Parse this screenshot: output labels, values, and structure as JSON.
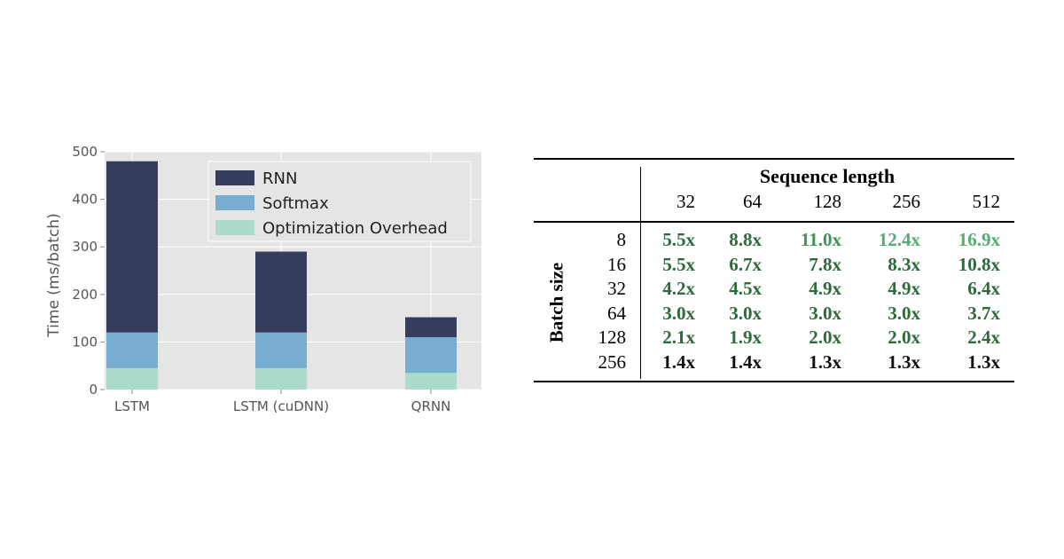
{
  "chart_data": {
    "type": "bar",
    "stacked": true,
    "title": "",
    "xlabel": "",
    "ylabel": "Time (ms/batch)",
    "ylim": [
      0,
      500
    ],
    "yticks": [
      0,
      100,
      200,
      300,
      400,
      500
    ],
    "grid": true,
    "legend_position": "top-right",
    "categories": [
      "LSTM",
      "LSTM (cuDNN)",
      "QRNN"
    ],
    "series": [
      {
        "name": "Optimization Overhead",
        "color": "#acdbcb",
        "values": [
          45,
          45,
          35
        ]
      },
      {
        "name": "Softmax",
        "color": "#77adcf",
        "values": [
          75,
          75,
          75
        ]
      },
      {
        "name": "RNN",
        "color": "#363d5f",
        "values": [
          360,
          170,
          42
        ]
      }
    ],
    "legend_order": [
      "RNN",
      "Softmax",
      "Optimization Overhead"
    ],
    "background_color": "#e5e5e5"
  },
  "table": {
    "header": "Sequence length",
    "row_header": "Batch size",
    "columns": [
      "32",
      "64",
      "128",
      "256",
      "512"
    ],
    "rows": [
      {
        "batch": "8",
        "values": [
          "5.5x",
          "8.8x",
          "11.0x",
          "12.4x",
          "16.9x"
        ]
      },
      {
        "batch": "16",
        "values": [
          "5.5x",
          "6.7x",
          "7.8x",
          "8.3x",
          "10.8x"
        ]
      },
      {
        "batch": "32",
        "values": [
          "4.2x",
          "4.5x",
          "4.9x",
          "4.9x",
          "6.4x"
        ]
      },
      {
        "batch": "64",
        "values": [
          "3.0x",
          "3.0x",
          "3.0x",
          "3.0x",
          "3.7x"
        ]
      },
      {
        "batch": "128",
        "values": [
          "2.1x",
          "1.9x",
          "2.0x",
          "2.0x",
          "2.4x"
        ]
      },
      {
        "batch": "256",
        "values": [
          "1.4x",
          "1.4x",
          "1.3x",
          "1.3x",
          "1.3x"
        ]
      }
    ],
    "cell_colors": [
      [
        "#2e6b3c",
        "#2e6b3c",
        "#3f9456",
        "#55ab73",
        "#55ab73"
      ],
      [
        "#2e6b3c",
        "#2e6b3c",
        "#2e6b3c",
        "#2e6b3c",
        "#2e6b3c"
      ],
      [
        "#2e6b3c",
        "#2e6b3c",
        "#2e6b3c",
        "#2e6b3c",
        "#2e6b3c"
      ],
      [
        "#2e6b3c",
        "#2e6b3c",
        "#2e6b3c",
        "#2e6b3c",
        "#2e6b3c"
      ],
      [
        "#2e6b3c",
        "#2e6b3c",
        "#2e6b3c",
        "#2e6b3c",
        "#2e6b3c"
      ],
      [
        "#111111",
        "#111111",
        "#111111",
        "#111111",
        "#111111"
      ]
    ]
  }
}
